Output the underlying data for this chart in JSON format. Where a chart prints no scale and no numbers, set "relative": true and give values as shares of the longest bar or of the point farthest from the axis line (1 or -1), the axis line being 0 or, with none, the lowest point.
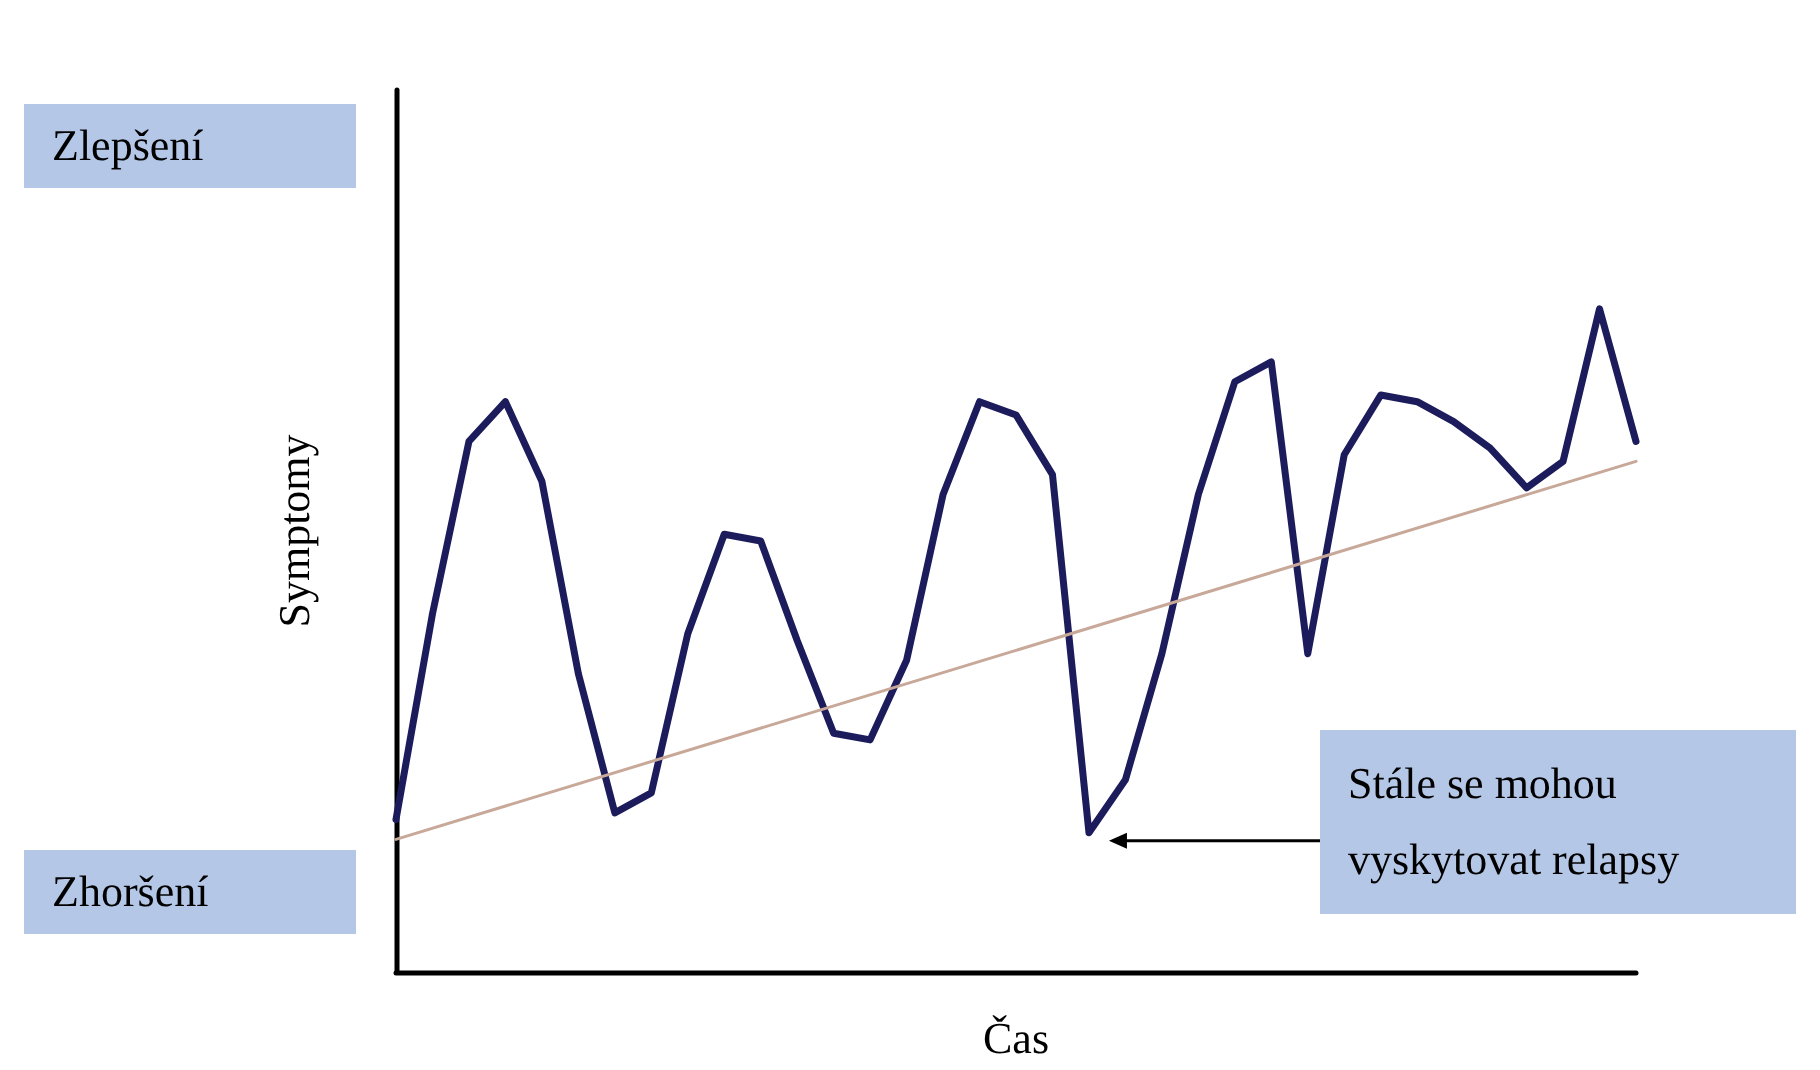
{
  "chart_data": {
    "type": "line",
    "relative": true,
    "xlabel": "Čas",
    "ylabel": "Symptomy",
    "annotations": [
      "Zlepšení",
      "Zhoršení",
      "Stále se mohou vyskytovat relapsy"
    ],
    "categories": [
      null,
      null,
      null,
      null,
      null,
      null,
      null,
      null,
      null,
      null,
      null,
      null,
      null,
      null,
      null,
      null,
      null,
      null,
      null,
      null,
      null,
      null,
      null,
      null,
      null,
      null,
      null,
      null,
      null,
      null,
      null,
      null,
      null,
      null,
      null
    ],
    "series": [
      {
        "color": "#1c1c5c",
        "values": [
          0.23,
          0.54,
          0.8,
          0.86,
          0.74,
          0.45,
          0.24,
          0.27,
          0.51,
          0.66,
          0.65,
          0.5,
          0.36,
          0.35,
          0.47,
          0.72,
          0.86,
          0.84,
          0.75,
          0.21,
          0.29,
          0.48,
          0.72,
          0.89,
          0.92,
          0.48,
          0.78,
          0.87,
          0.86,
          0.83,
          0.79,
          0.73,
          0.77,
          1,
          0.8
        ]
      },
      {
        "color": "#c8a898",
        "values": [
          0.2,
          null,
          null,
          null,
          null,
          null,
          null,
          null,
          null,
          null,
          null,
          null,
          null,
          null,
          null,
          null,
          null,
          null,
          null,
          null,
          null,
          null,
          null,
          null,
          null,
          null,
          null,
          null,
          null,
          null,
          null,
          null,
          null,
          null,
          0.77
        ]
      }
    ]
  }
}
